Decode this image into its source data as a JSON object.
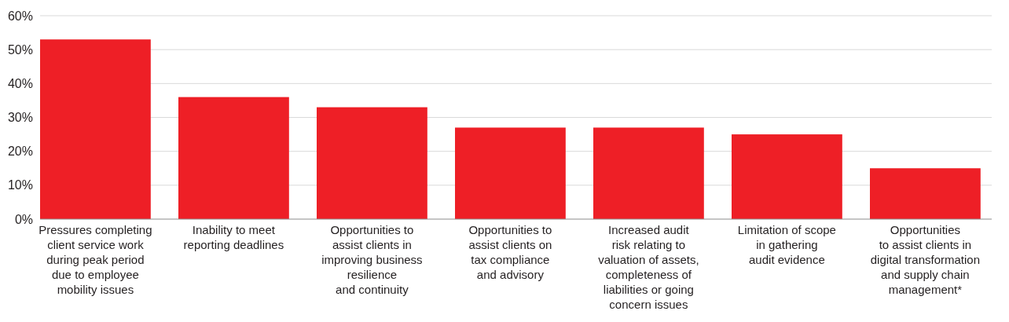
{
  "chart_data": {
    "type": "bar",
    "categories": [
      "Pressures completing\nclient service work\nduring peak period\ndue to employee\nmobility issues",
      "Inability to meet\nreporting deadlines",
      "Opportunities to\nassist clients in\nimproving business\nresilience\nand continuity",
      "Opportunities to\nassist clients on\ntax compliance\nand advisory",
      "Increased audit\nrisk relating to\nvaluation of assets,\ncompleteness of\nliabilities or going\nconcern issues",
      "Limitation of scope\nin gathering\naudit evidence",
      "Opportunities\nto assist clients in\ndigital transformation\nand supply chain\nmanagement*"
    ],
    "values": [
      53,
      36,
      33,
      27,
      27,
      25,
      15
    ],
    "color": "#ee1f26",
    "ylim": [
      0,
      60
    ],
    "yticks": [
      {
        "value": 0,
        "label": "0%"
      },
      {
        "value": 10,
        "label": "10%"
      },
      {
        "value": 20,
        "label": "20%"
      },
      {
        "value": 30,
        "label": "30%"
      },
      {
        "value": 40,
        "label": "40%"
      },
      {
        "value": 50,
        "label": "50%"
      },
      {
        "value": 60,
        "label": "60%"
      }
    ],
    "grid": "y"
  }
}
